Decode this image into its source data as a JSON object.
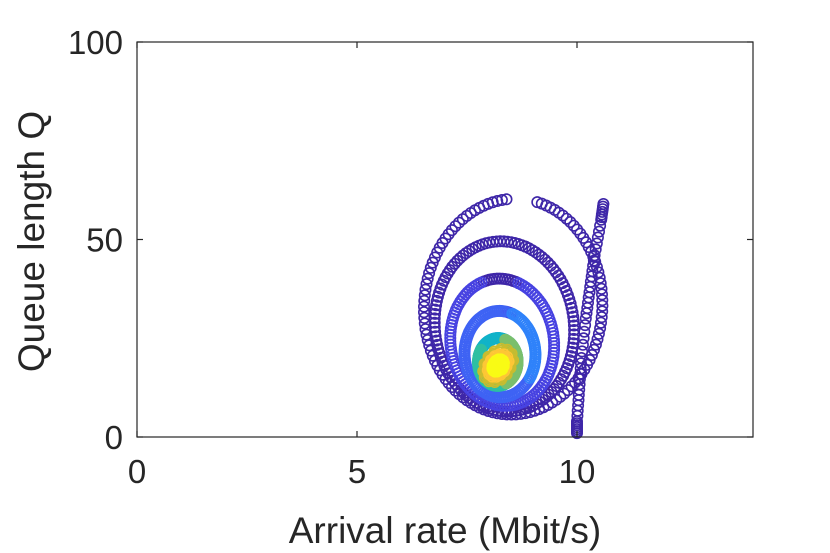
{
  "chart_data": {
    "type": "scatter",
    "title": "",
    "xlabel": "Arrival rate (Mbit/s)",
    "ylabel": "Queue length Q",
    "xlim": [
      0,
      14
    ],
    "ylim": [
      0,
      100
    ],
    "xticks": [
      "0",
      "5",
      "10"
    ],
    "yticks": [
      "0",
      "50",
      "100"
    ],
    "grid": false,
    "box": true,
    "marker": "open-circle",
    "colormap": "parula",
    "colors": [
      "#3E26A8",
      "#4742E1",
      "#3E63F4",
      "#2F82FA",
      "#1C9FE0",
      "#10B3C8",
      "#2EBFA2",
      "#7ABF6C",
      "#C9BC2E",
      "#FEC735",
      "#F9FB15"
    ],
    "trajectory_description": "Spiral trajectory starting near (10, 1), rising to about (10.6, 59), then spiralling inward and converging near (8.2, 18).",
    "series": [
      {
        "spiral": {
          "start": [
            10.0,
            1.0
          ],
          "center": [
            8.2,
            18.0
          ]
        },
        "loops": [
          {
            "xc": 8.55,
            "yc": 33.0,
            "rx": 2.05,
            "ry": 27.0,
            "tilt_deg": 43,
            "start_deg": 52,
            "sweep_deg": 340
          },
          {
            "xc": 8.35,
            "yc": 28.0,
            "rx": 1.55,
            "ry": 22.0,
            "tilt_deg": 41,
            "start_deg": 30,
            "sweep_deg": 360
          },
          {
            "xc": 8.3,
            "yc": 24.0,
            "rx": 1.15,
            "ry": 16.5,
            "tilt_deg": 40,
            "start_deg": 30,
            "sweep_deg": 360
          },
          {
            "xc": 8.25,
            "yc": 21.0,
            "rx": 0.8,
            "ry": 11.0,
            "tilt_deg": 39,
            "start_deg": 30,
            "sweep_deg": 360
          },
          {
            "xc": 8.2,
            "yc": 19.0,
            "rx": 0.45,
            "ry": 6.0,
            "tilt_deg": 38,
            "start_deg": 30,
            "sweep_deg": 720
          }
        ],
        "x": [
          10.0,
          10.0,
          10.05,
          10.1,
          10.2,
          10.3,
          10.4,
          10.55,
          10.6
        ],
        "y": [
          1.0,
          4.0,
          12.0,
          20.0,
          30.0,
          38.0,
          46.0,
          55.0,
          59.0
        ]
      }
    ]
  }
}
